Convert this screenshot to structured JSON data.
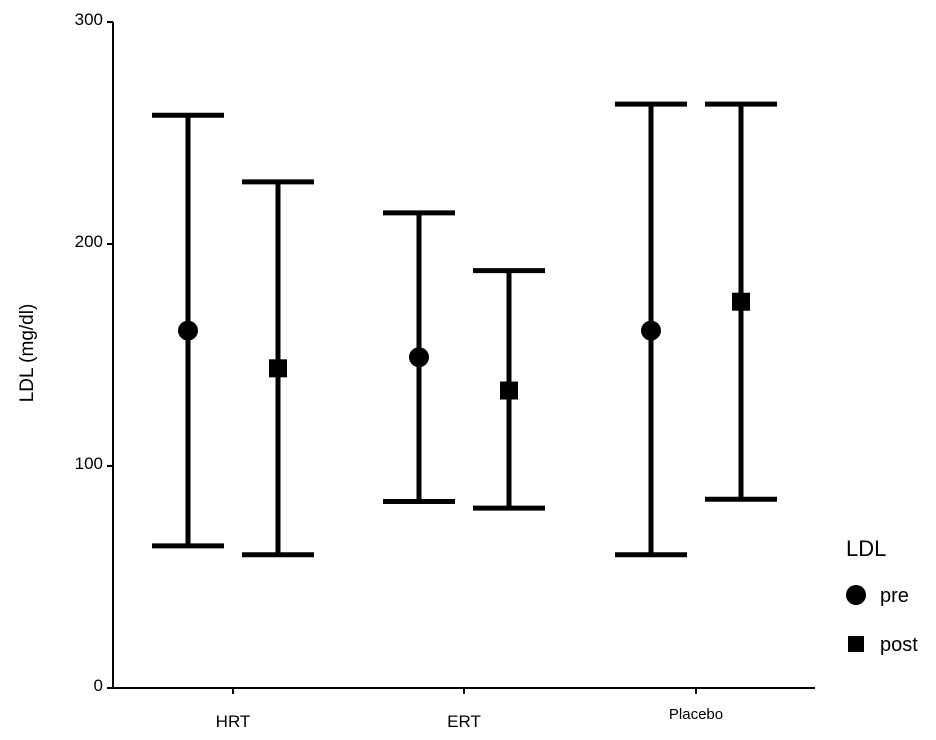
{
  "chart_data": {
    "type": "errorbar",
    "ylabel": "LDL (mg/dl)",
    "ylim": [
      0,
      300
    ],
    "yticks": [
      0,
      100,
      200,
      300
    ],
    "categories": [
      "HRT",
      "ERT",
      "Placebo"
    ],
    "series": [
      {
        "name": "pre",
        "marker": "circle",
        "mean": [
          161,
          149,
          161
        ],
        "upper": [
          258,
          214,
          263
        ],
        "lower": [
          64,
          84,
          60
        ]
      },
      {
        "name": "post",
        "marker": "square",
        "mean": [
          144,
          134,
          174
        ],
        "upper": [
          228,
          188,
          263
        ],
        "lower": [
          60,
          81,
          85
        ]
      }
    ],
    "legend": {
      "title": "LDL",
      "position": "right"
    },
    "grid": false,
    "color": "#000000"
  }
}
